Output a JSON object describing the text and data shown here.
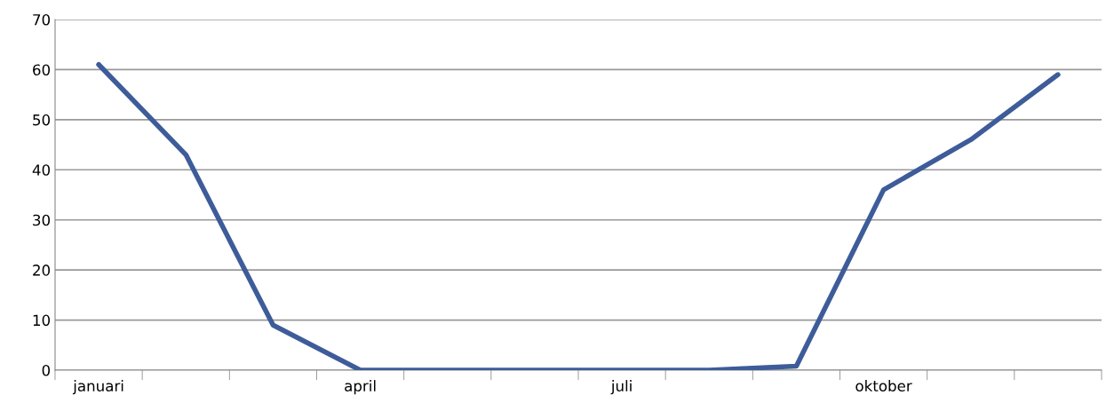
{
  "chart_data": {
    "type": "line",
    "categories": [
      "januari",
      null,
      null,
      "april",
      null,
      null,
      "juli",
      null,
      null,
      "oktober",
      null,
      null
    ],
    "series": [
      {
        "color": "#3d5c99",
        "values": [
          61,
          43,
          9,
          0,
          0,
          0,
          0,
          0,
          0.8,
          36,
          46,
          59
        ]
      }
    ],
    "ylim": [
      0,
      70
    ],
    "yticks": [
      0,
      10,
      20,
      30,
      40,
      50,
      60,
      70
    ],
    "grid": "y",
    "marker": "none",
    "line_style": "solid"
  }
}
